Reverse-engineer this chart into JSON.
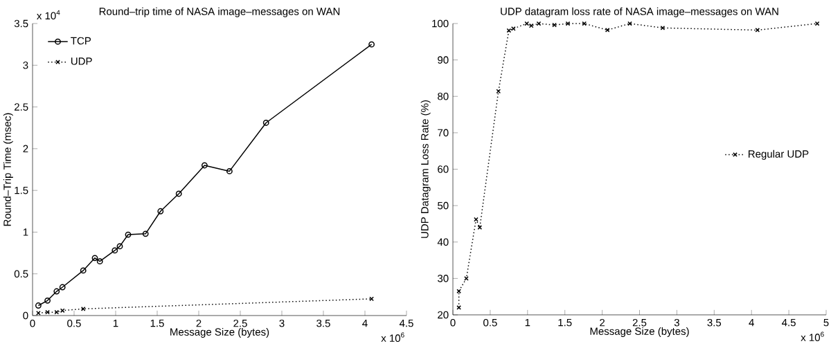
{
  "chart_data": [
    {
      "type": "line",
      "title": "Round–trip time of NASA image–messages on WAN",
      "xlabel": "Message Size (bytes)",
      "ylabel": "Round–Trip Time (msec)",
      "xlim": [
        0,
        4.5
      ],
      "ylim": [
        0,
        3.5
      ],
      "xticks": [
        0,
        0.5,
        1,
        1.5,
        2,
        2.5,
        3,
        3.5,
        4,
        4.5
      ],
      "yticks": [
        0,
        0.5,
        1,
        1.5,
        2,
        2.5,
        3,
        3.5
      ],
      "legend": "top left",
      "grid": false,
      "series": [
        {
          "name": "TCP",
          "color": "#000000",
          "marker": "circle",
          "line_style": "solid",
          "x": [
            0.07,
            0.18,
            0.29,
            0.36,
            0.61,
            0.75,
            0.81,
            0.99,
            1.05,
            1.15,
            1.36,
            1.54,
            1.76,
            2.07,
            2.37,
            2.81,
            4.08
          ],
          "values": [
            0.12,
            0.18,
            0.29,
            0.34,
            0.54,
            0.69,
            0.65,
            0.78,
            0.83,
            0.97,
            0.98,
            1.25,
            1.46,
            1.8,
            1.73,
            2.31,
            3.25
          ]
        },
        {
          "name": "UDP",
          "color": "#000000",
          "marker": "cross",
          "line_style": "dotted",
          "x": [
            0.07,
            0.18,
            0.29,
            0.36,
            0.61,
            4.08
          ],
          "values": [
            0.03,
            0.04,
            0.04,
            0.06,
            0.08,
            0.2
          ]
        }
      ],
      "annotations": [
        "x 10$^{4}$",
        "x 10$^{6}$"
      ]
    },
    {
      "type": "line",
      "title": "UDP datagram loss rate of NASA image–messages on WAN",
      "xlabel": "Message Size (bytes)",
      "ylabel": "UDP Datagram Loss Rate (%)",
      "xlim": [
        0,
        5
      ],
      "ylim": [
        20,
        100
      ],
      "xticks": [
        0,
        0.5,
        1,
        1.5,
        2,
        2.5,
        3,
        3.5,
        4,
        4.5,
        5
      ],
      "yticks": [
        20,
        30,
        40,
        50,
        60,
        70,
        80,
        90,
        100
      ],
      "legend": "right",
      "grid": false,
      "series": [
        {
          "name": "Regular UDP",
          "color": "#000000",
          "marker": "cross",
          "line_style": "dotted",
          "x": [
            0.08,
            0.08,
            0.18,
            0.31,
            0.36,
            0.61,
            0.75,
            0.81,
            0.99,
            1.05,
            1.15,
            1.36,
            1.54,
            1.76,
            2.07,
            2.37,
            2.81,
            4.08,
            4.88
          ],
          "values": [
            22,
            26.5,
            30,
            46.2,
            44,
            81.4,
            98.1,
            98.6,
            100,
            99.4,
            100,
            99.6,
            100,
            100,
            98.2,
            100,
            98.8,
            98.2,
            100
          ]
        }
      ],
      "annotations": [
        "x 10$^{6}$"
      ]
    }
  ]
}
